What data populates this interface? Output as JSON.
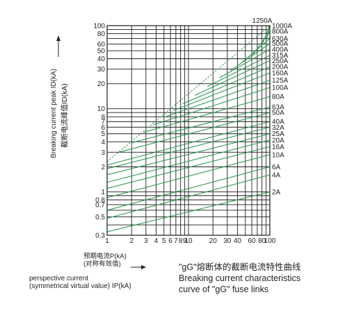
{
  "chart_data": {
    "type": "line",
    "xscale": "log",
    "yscale": "log",
    "xlim": [
      1,
      100
    ],
    "ylim": [
      0.3,
      100
    ],
    "grid": true,
    "x_ticks": [
      {
        "v": 1,
        "label": "1"
      },
      {
        "v": 2,
        "label": "2"
      },
      {
        "v": 3,
        "label": "3"
      },
      {
        "v": 4,
        "label": "4"
      },
      {
        "v": 5,
        "label": "5"
      },
      {
        "v": 6,
        "label": "6"
      },
      {
        "v": 7,
        "label": "7"
      },
      {
        "v": 8,
        "label": "8"
      },
      {
        "v": 9,
        "label": "9"
      },
      {
        "v": 10,
        "label": "10"
      },
      {
        "v": 20,
        "label": "20"
      },
      {
        "v": 30,
        "label": "30"
      },
      {
        "v": 40,
        "label": "40"
      },
      {
        "v": 60,
        "label": "60"
      },
      {
        "v": 80,
        "label": "80"
      },
      {
        "v": 100,
        "label": "100"
      }
    ],
    "x_grid": [
      1,
      2,
      3,
      4,
      5,
      6,
      7,
      8,
      9,
      10,
      20,
      30,
      40,
      50,
      60,
      70,
      80,
      90,
      100
    ],
    "y_ticks": [
      {
        "v": 0.3,
        "label": "0.3"
      },
      {
        "v": 0.5,
        "label": "0.5"
      },
      {
        "v": 0.7,
        "label": "0.7"
      },
      {
        "v": 0.8,
        "label": "0.8"
      },
      {
        "v": 1,
        "label": "1"
      },
      {
        "v": 2,
        "label": "2"
      },
      {
        "v": 3,
        "label": "3"
      },
      {
        "v": 4,
        "label": "4"
      },
      {
        "v": 5,
        "label": "5"
      },
      {
        "v": 6,
        "label": "6"
      },
      {
        "v": 7,
        "label": "7"
      },
      {
        "v": 8,
        "label": "8"
      },
      {
        "v": 10,
        "label": "10"
      },
      {
        "v": 20,
        "label": "20"
      },
      {
        "v": 30,
        "label": "30"
      },
      {
        "v": 40,
        "label": "40"
      },
      {
        "v": 50,
        "label": "50"
      },
      {
        "v": 60,
        "label": "60"
      },
      {
        "v": 80,
        "label": "80"
      },
      {
        "v": 100,
        "label": "100"
      }
    ],
    "y_grid": [
      0.3,
      0.4,
      0.5,
      0.6,
      0.7,
      0.8,
      0.9,
      1,
      2,
      3,
      4,
      5,
      6,
      7,
      8,
      9,
      10,
      20,
      30,
      40,
      50,
      60,
      70,
      80,
      90,
      100
    ],
    "ylabel_en": "Breaking current peak ID(kA)",
    "ylabel_cn": "截断电流峰值ID(kA)",
    "xlabel_cn_1": "预期电流P(kA)",
    "xlabel_cn_2": "(对称有效值)",
    "xlabel_en_1": "perspective current",
    "xlabel_en_2": "(symmetrical virtual value) IP(kA)",
    "caption_cn": "\"gG\"熔断体的截断电流特性曲线",
    "caption_en_1": "Breaking current characteristics",
    "caption_en_2": "curve of \"gG\" fuse links",
    "line_color": "#2e9a52",
    "grid_color": "#1a1a1a",
    "envelope": {
      "x": [
        1,
        100
      ],
      "y": [
        2.3,
        100
      ]
    },
    "series": [
      {
        "name": "2A",
        "x": [
          1,
          100
        ],
        "y": [
          0.33,
          1.0
        ]
      },
      {
        "name": "4A",
        "x": [
          1,
          100
        ],
        "y": [
          0.48,
          1.6
        ]
      },
      {
        "name": "6A",
        "x": [
          1,
          100
        ],
        "y": [
          0.6,
          2.0
        ]
      },
      {
        "name": "10A",
        "x": [
          1,
          100
        ],
        "y": [
          0.85,
          2.8
        ]
      },
      {
        "name": "16A",
        "x": [
          1,
          100
        ],
        "y": [
          1.1,
          3.5
        ]
      },
      {
        "name": "20A",
        "x": [
          1,
          100
        ],
        "y": [
          1.3,
          4.2
        ]
      },
      {
        "name": "25A",
        "x": [
          1,
          100
        ],
        "y": [
          1.6,
          5.0
        ]
      },
      {
        "name": "32A",
        "x": [
          1,
          100
        ],
        "y": [
          1.9,
          6.0
        ]
      },
      {
        "name": "40A",
        "x": [
          1,
          100
        ],
        "y": [
          2.1,
          7.0
        ]
      },
      {
        "name": "50A",
        "x": [
          1.4,
          100
        ],
        "y": [
          3.0,
          9.0
        ]
      },
      {
        "name": "63A",
        "x": [
          2,
          100
        ],
        "y": [
          3.9,
          10.5
        ]
      },
      {
        "name": "80A",
        "x": [
          2.8,
          100
        ],
        "y": [
          5.2,
          14.0
        ]
      },
      {
        "name": "100A",
        "x": [
          3.7,
          100
        ],
        "y": [
          6.4,
          18.0
        ]
      },
      {
        "name": "125A",
        "x": [
          5,
          100
        ],
        "y": [
          7.9,
          22.0
        ]
      },
      {
        "name": "160A",
        "x": [
          6.5,
          100
        ],
        "y": [
          9.5,
          27.0
        ]
      },
      {
        "name": "200A",
        "x": [
          8.5,
          100
        ],
        "y": [
          11.5,
          32.0
        ]
      },
      {
        "name": "250A",
        "x": [
          12,
          100
        ],
        "y": [
          14.5,
          38.0
        ]
      },
      {
        "name": "315A",
        "x": [
          17,
          100
        ],
        "y": [
          18.5,
          44.0
        ]
      },
      {
        "name": "400A",
        "x": [
          24,
          100
        ],
        "y": [
          23.5,
          52.0
        ]
      },
      {
        "name": "500A",
        "x": [
          33,
          100
        ],
        "y": [
          29.0,
          61.0
        ]
      },
      {
        "name": "630A",
        "x": [
          45,
          100
        ],
        "y": [
          36.0,
          70.0
        ]
      },
      {
        "name": "800A",
        "x": [
          62,
          100
        ],
        "y": [
          45.0,
          86.0
        ]
      },
      {
        "name": "1000A",
        "x": [
          78,
          100
        ],
        "y": [
          55.0,
          100.0
        ]
      },
      {
        "name": "1250A",
        "x": [
          92,
          100
        ],
        "y": [
          68.0,
          108.0
        ]
      }
    ]
  }
}
